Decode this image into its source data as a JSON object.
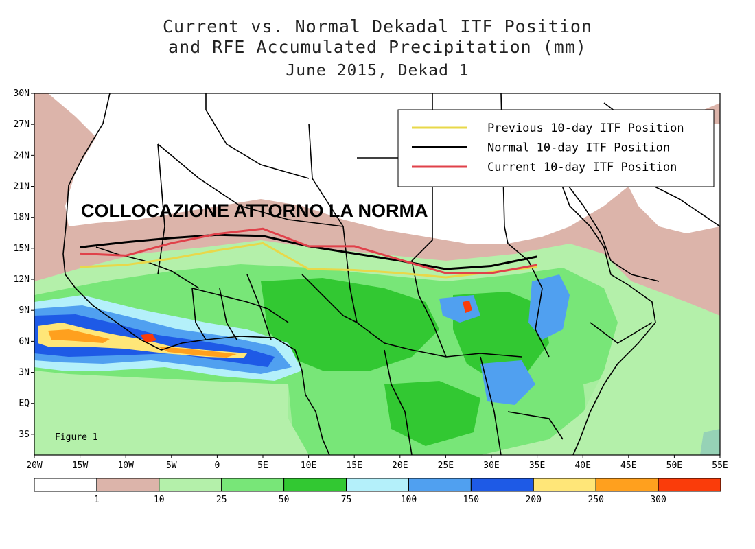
{
  "title": {
    "line1": "Current vs. Normal Dekadal ITF Position",
    "line2": "and RFE Accumulated Precipitation (mm)",
    "line3": "June 2015, Dekad 1"
  },
  "map": {
    "lon_ticks": [
      "20W",
      "15W",
      "10W",
      "5W",
      "0",
      "5E",
      "10E",
      "15E",
      "20E",
      "25E",
      "30E",
      "35E",
      "40E",
      "45E",
      "50E",
      "55E"
    ],
    "lat_ticks": [
      "30N",
      "27N",
      "24N",
      "21N",
      "18N",
      "15N",
      "12N",
      "9N",
      "6N",
      "3N",
      "EQ",
      "3S"
    ],
    "overlay_text": "COLLOCAZIONE ATTORNO LA NORMA",
    "figure_label": "Figure 1"
  },
  "legend": {
    "items": [
      {
        "label": "Previous 10-day ITF Position",
        "color": "#e8d84a"
      },
      {
        "label": "Normal 10-day ITF Position",
        "color": "#000000"
      },
      {
        "label": "Current 10-day ITF Position",
        "color": "#e0414a"
      }
    ]
  },
  "colorbar": {
    "labels": [
      "1",
      "10",
      "25",
      "50",
      "75",
      "100",
      "150",
      "200",
      "250",
      "300"
    ],
    "colors": [
      "#ffffff",
      "#dcb4aa",
      "#b4f0aa",
      "#78e678",
      "#32c832",
      "#b4f0fa",
      "#50a0f0",
      "#1e5ae6",
      "#ffe678",
      "#ffa01e",
      "#fa3c0a"
    ]
  },
  "chart_data": {
    "type": "line",
    "title": "Current vs. Normal Dekadal ITF Position and RFE Accumulated Precipitation (mm) June 2015, Dekad 1",
    "xlabel": "",
    "ylabel": "",
    "xlim": [
      -20,
      55
    ],
    "ylim": [
      -5,
      30
    ],
    "series": [
      {
        "name": "Previous 10-day ITF Position",
        "x": [
          -15,
          -10,
          -5,
          0,
          5,
          10,
          15,
          20,
          25,
          30,
          35
        ],
        "y": [
          13.2,
          13.4,
          14.0,
          14.8,
          15.5,
          13.0,
          12.9,
          12.6,
          12.2,
          12.7,
          13.2
        ]
      },
      {
        "name": "Normal 10-day ITF Position",
        "x": [
          -15,
          -10,
          -5,
          0,
          5,
          10,
          15,
          20,
          25,
          30,
          35
        ],
        "y": [
          15.1,
          15.6,
          16.0,
          16.3,
          16.2,
          15.2,
          14.5,
          13.8,
          13.0,
          13.3,
          14.2
        ]
      },
      {
        "name": "Current 10-day ITF Position",
        "x": [
          -15,
          -10,
          -5,
          0,
          5,
          10,
          15,
          20,
          25,
          30,
          35
        ],
        "y": [
          14.5,
          14.3,
          15.5,
          16.4,
          16.9,
          15.2,
          15.2,
          13.9,
          12.6,
          12.6,
          13.4
        ]
      }
    ]
  }
}
